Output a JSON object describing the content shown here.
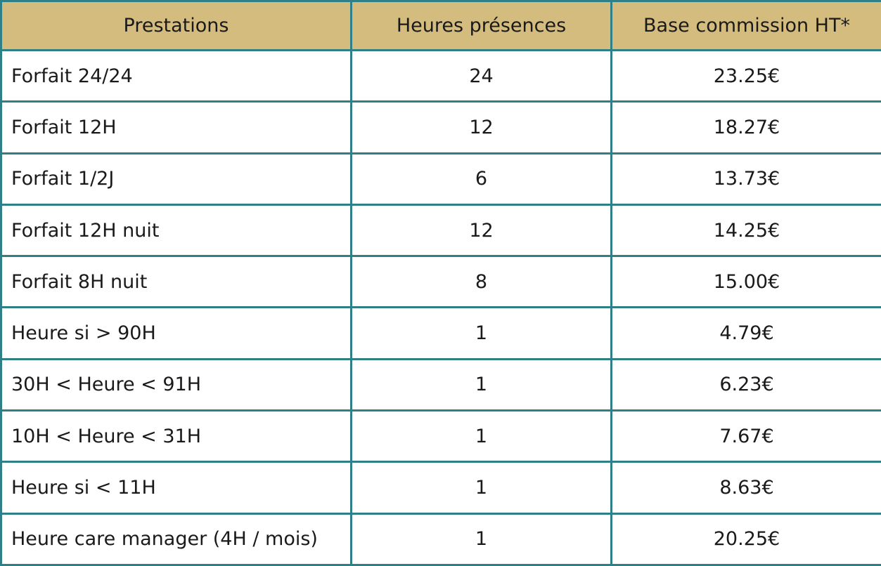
{
  "table": {
    "headers": [
      "Prestations",
      "Heures présences",
      "Base commission HT*"
    ],
    "rows": [
      [
        "Forfait 24/24",
        "24",
        "23.25€"
      ],
      [
        "Forfait 12H",
        "12",
        "18.27€"
      ],
      [
        "Forfait 1/2J",
        "6",
        "13.73€"
      ],
      [
        "Forfait 12H nuit",
        "12",
        "14.25€"
      ],
      [
        "Forfait 8H nuit",
        "8",
        "15.00€"
      ],
      [
        "Heure si > 90H",
        "1",
        "4.79€"
      ],
      [
        "30H < Heure < 91H",
        "1",
        "6.23€"
      ],
      [
        "10H < Heure < 31H",
        "1",
        "7.67€"
      ],
      [
        "Heure si < 11H",
        "1",
        "8.63€"
      ],
      [
        "Heure care manager (4H / mois)",
        "1",
        "20.25€"
      ]
    ]
  },
  "colors": {
    "header_background": "#d4bc7e",
    "border": "#2f7f86",
    "text": "#1a1a1a"
  }
}
